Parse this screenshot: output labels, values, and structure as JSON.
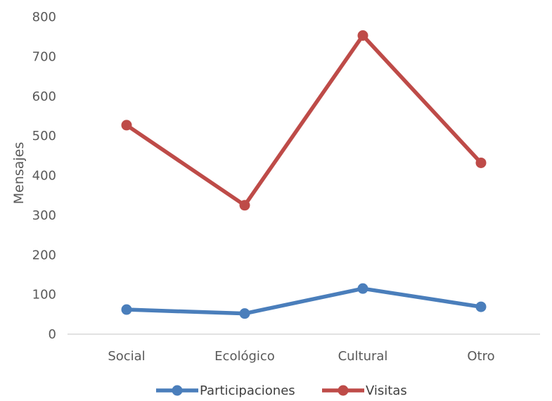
{
  "chart_data": {
    "type": "line",
    "title": "",
    "xlabel": "",
    "ylabel": "Mensajes",
    "categories": [
      "Social",
      "Ecológico",
      "Cultural",
      "Otro"
    ],
    "ylim": [
      0,
      800
    ],
    "yticks": [
      0,
      100,
      200,
      300,
      400,
      500,
      600,
      700,
      800
    ],
    "yticks_labels": [
      "0",
      "100",
      "200",
      "300",
      "400",
      "500",
      "600",
      "700",
      "800"
    ],
    "grid": false,
    "legend": "bottom",
    "series": [
      {
        "name": "Participaciones",
        "color": "#4a7ebb",
        "values": [
          62,
          52,
          115,
          69
        ]
      },
      {
        "name": "Visitas",
        "color": "#be4b48",
        "values": [
          527,
          325,
          753,
          432
        ]
      }
    ]
  }
}
